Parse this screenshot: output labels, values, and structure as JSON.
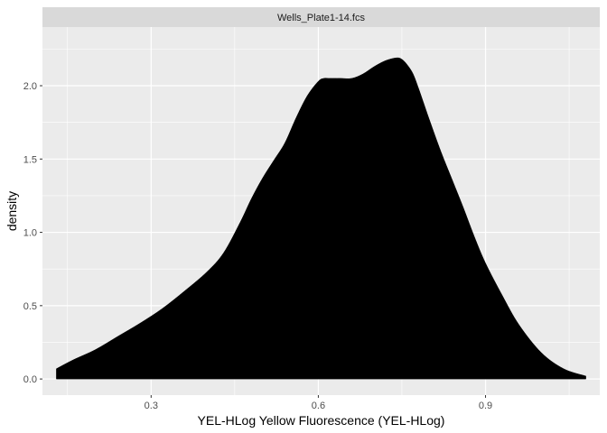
{
  "chart_data": {
    "type": "area",
    "panel_title": "Wells_Plate1-14.fcs",
    "xlabel": "YEL-HLog Yellow Fluorescence (YEL-HLog)",
    "ylabel": "density",
    "xlim": [
      0.105,
      1.105
    ],
    "ylim": [
      -0.11,
      2.4
    ],
    "x_ticks": [
      0.3,
      0.6,
      0.9
    ],
    "x_tick_labels": [
      "0.3",
      "0.6",
      "0.9"
    ],
    "y_ticks": [
      0.0,
      0.5,
      1.0,
      1.5,
      2.0
    ],
    "y_tick_labels": [
      "0.0",
      "0.5",
      "1.0",
      "1.5",
      "2.0"
    ],
    "grid": true,
    "fill_color": "#000000",
    "panel_background": "#ebebeb",
    "strip_background": "#d9d9d9",
    "grid_color": "#ffffff",
    "series": [
      {
        "x": [
          0.13,
          0.16,
          0.2,
          0.24,
          0.28,
          0.32,
          0.36,
          0.4,
          0.43,
          0.46,
          0.48,
          0.5,
          0.52,
          0.54,
          0.56,
          0.58,
          0.6,
          0.61,
          0.62,
          0.64,
          0.66,
          0.68,
          0.7,
          0.72,
          0.74,
          0.75,
          0.76,
          0.77,
          0.78,
          0.79,
          0.8,
          0.82,
          0.84,
          0.86,
          0.88,
          0.9,
          0.93,
          0.96,
          1.0,
          1.04,
          1.08
        ],
        "y": [
          0.07,
          0.13,
          0.2,
          0.29,
          0.38,
          0.48,
          0.6,
          0.73,
          0.86,
          1.07,
          1.23,
          1.37,
          1.49,
          1.61,
          1.78,
          1.93,
          2.03,
          2.05,
          2.05,
          2.05,
          2.05,
          2.08,
          2.13,
          2.17,
          2.19,
          2.18,
          2.14,
          2.08,
          1.98,
          1.87,
          1.76,
          1.55,
          1.36,
          1.17,
          0.97,
          0.79,
          0.57,
          0.37,
          0.18,
          0.07,
          0.02
        ]
      }
    ]
  }
}
